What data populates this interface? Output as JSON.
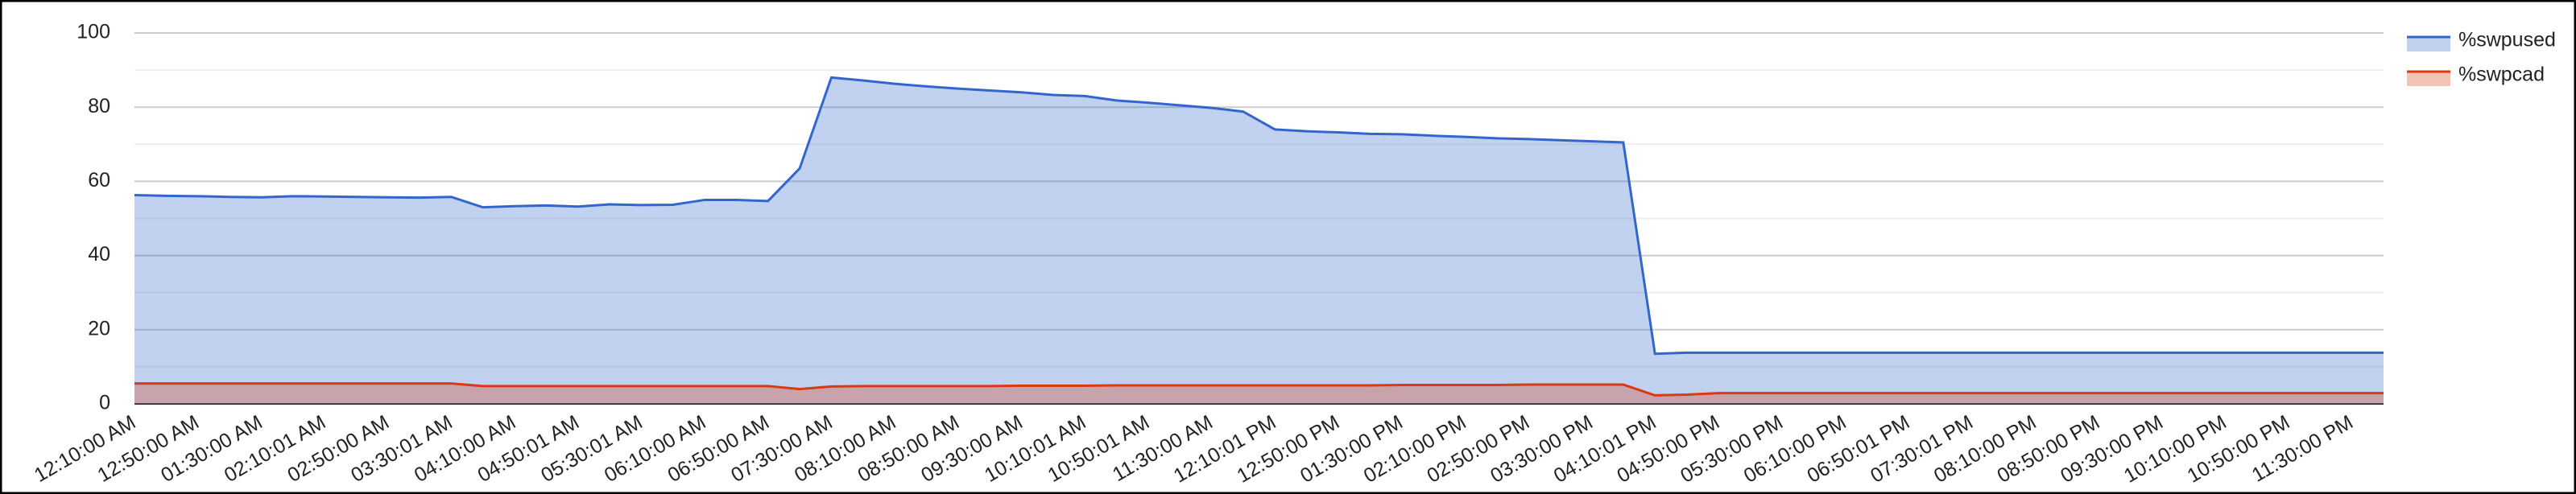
{
  "chart_data": {
    "type": "area",
    "categories": [
      "12:10:00 AM",
      null,
      "12:50:00 AM",
      null,
      "01:30:00 AM",
      null,
      "02:10:01 AM",
      null,
      "02:50:00 AM",
      null,
      "03:30:01 AM",
      null,
      "04:10:00 AM",
      null,
      "04:50:01 AM",
      null,
      "05:30:01 AM",
      null,
      "06:10:00 AM",
      null,
      "06:50:00 AM",
      null,
      "07:30:00 AM",
      null,
      "08:10:00 AM",
      null,
      "08:50:00 AM",
      null,
      "09:30:00 AM",
      null,
      "10:10:01 AM",
      null,
      "10:50:01 AM",
      null,
      "11:30:00 AM",
      null,
      "12:10:01 PM",
      null,
      "12:50:00 PM",
      null,
      "01:30:00 PM",
      null,
      "02:10:00 PM",
      null,
      "02:50:00 PM",
      null,
      "03:30:00 PM",
      null,
      "04:10:01 PM",
      null,
      "04:50:00 PM",
      null,
      "05:30:00 PM",
      null,
      "06:10:00 PM",
      null,
      "06:50:01 PM",
      null,
      "07:30:01 PM",
      null,
      "08:10:00 PM",
      null,
      "08:50:00 PM",
      null,
      "09:30:00 PM",
      null,
      "10:10:00 PM",
      null,
      "10:50:00 PM",
      null,
      "11:30:00 PM",
      null
    ],
    "series": [
      {
        "name": "%swpused",
        "color": "#3366cc",
        "values": [
          56.3,
          56.1,
          56.0,
          55.8,
          55.7,
          56.0,
          55.9,
          55.8,
          55.7,
          55.6,
          55.8,
          53.0,
          53.3,
          53.5,
          53.2,
          53.8,
          53.6,
          53.7,
          55.0,
          55.0,
          54.7,
          63.5,
          88.0,
          87.2,
          86.3,
          85.6,
          85.0,
          84.5,
          84.0,
          83.3,
          83.0,
          81.8,
          81.2,
          80.5,
          79.8,
          78.8,
          74.0,
          73.5,
          73.2,
          72.8,
          72.7,
          72.3,
          72.0,
          71.6,
          71.4,
          71.1,
          70.8,
          70.5,
          13.5,
          13.8,
          13.8,
          13.8,
          13.8,
          13.8,
          13.8,
          13.8,
          13.8,
          13.8,
          13.8,
          13.8,
          13.8,
          13.8,
          13.8,
          13.8,
          13.8,
          13.8,
          13.8,
          13.8,
          13.8,
          13.8,
          13.8,
          13.8
        ]
      },
      {
        "name": "%swpcad",
        "color": "#dc3912",
        "values": [
          5.5,
          5.5,
          5.5,
          5.5,
          5.5,
          5.5,
          5.5,
          5.5,
          5.5,
          5.5,
          5.5,
          4.8,
          4.8,
          4.8,
          4.8,
          4.8,
          4.8,
          4.8,
          4.8,
          4.8,
          4.8,
          4.0,
          4.7,
          4.8,
          4.8,
          4.8,
          4.8,
          4.8,
          4.9,
          4.9,
          4.9,
          5.0,
          5.0,
          5.0,
          5.0,
          5.0,
          5.0,
          5.0,
          5.0,
          5.0,
          5.1,
          5.1,
          5.1,
          5.1,
          5.2,
          5.2,
          5.2,
          5.2,
          2.3,
          2.5,
          2.9,
          2.9,
          2.9,
          2.9,
          2.9,
          2.9,
          2.9,
          2.9,
          2.9,
          2.9,
          2.9,
          2.9,
          2.9,
          2.9,
          2.9,
          2.9,
          2.9,
          2.9,
          2.9,
          2.9,
          2.9,
          2.9
        ]
      }
    ],
    "ylim": [
      0,
      100
    ],
    "yticks": [
      0,
      20,
      40,
      60,
      80,
      100
    ],
    "grid": true,
    "legend": "right"
  }
}
